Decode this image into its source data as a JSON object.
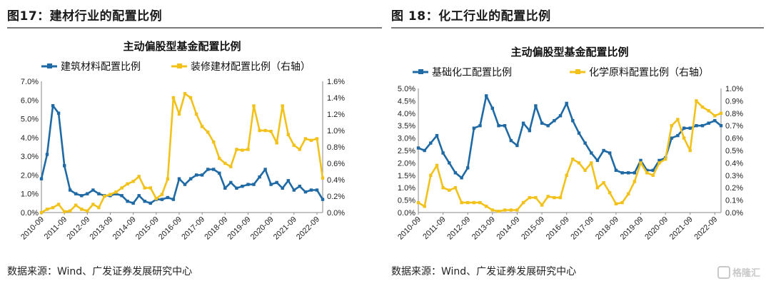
{
  "figures": [
    {
      "figure_title": "图17：建材行业的配置比例",
      "source_note": "数据来源：Wind、广发证券发展研究中心"
    },
    {
      "figure_title": "图 18：化工行业的配置比例",
      "source_note": "数据来源：Wind、广发证券发展研究中心"
    }
  ],
  "watermark": "格隆汇",
  "chart_data": [
    {
      "type": "line",
      "title": "主动偏股型基金配置比例",
      "x_ticks": [
        "2010-09",
        "2011-09",
        "2012-09",
        "2013-09",
        "2014-09",
        "2015-09",
        "2016-09",
        "2017-09",
        "2018-09",
        "2019-09",
        "2020-09",
        "2021-09",
        "2022-09"
      ],
      "x_range": [
        "2010-09",
        "2022-12"
      ],
      "left_axis": {
        "ticks": [
          "0.0%",
          "1.0%",
          "2.0%",
          "3.0%",
          "4.0%",
          "5.0%",
          "6.0%",
          "7.0%"
        ],
        "ylim": [
          0,
          7
        ]
      },
      "right_axis": {
        "ticks": [
          "0.0%",
          "0.2%",
          "0.4%",
          "0.6%",
          "0.8%",
          "1.0%",
          "1.2%",
          "1.4%",
          "1.6%"
        ],
        "ylim": [
          0,
          1.6
        ]
      },
      "legend_position": "top",
      "series": [
        {
          "name": "建筑材料配置比例",
          "axis": "left",
          "color": "#1f6aa5",
          "marker": "square",
          "x": [
            "2010-09",
            "2010-12",
            "2011-03",
            "2011-06",
            "2011-09",
            "2011-12",
            "2012-03",
            "2012-06",
            "2012-09",
            "2012-12",
            "2013-03",
            "2013-06",
            "2013-09",
            "2013-12",
            "2014-03",
            "2014-06",
            "2014-09",
            "2014-12",
            "2015-03",
            "2015-06",
            "2015-09",
            "2015-12",
            "2016-03",
            "2016-06",
            "2016-09",
            "2016-12",
            "2017-03",
            "2017-06",
            "2017-09",
            "2017-12",
            "2018-03",
            "2018-06",
            "2018-09",
            "2018-12",
            "2019-03",
            "2019-06",
            "2019-09",
            "2019-12",
            "2020-03",
            "2020-06",
            "2020-09",
            "2020-12",
            "2021-03",
            "2021-06",
            "2021-09",
            "2021-12",
            "2022-03",
            "2022-06",
            "2022-09",
            "2022-12"
          ],
          "y": [
            1.8,
            3.1,
            5.7,
            5.3,
            2.5,
            1.2,
            1.0,
            0.9,
            1.0,
            1.2,
            1.0,
            0.9,
            0.9,
            1.0,
            0.9,
            0.6,
            0.5,
            0.9,
            0.6,
            0.5,
            0.7,
            0.7,
            0.8,
            0.7,
            1.8,
            1.5,
            1.8,
            2.0,
            2.0,
            2.3,
            2.3,
            2.1,
            1.3,
            1.6,
            1.3,
            1.4,
            1.5,
            1.5,
            1.9,
            2.3,
            1.5,
            1.6,
            1.3,
            1.7,
            1.2,
            1.4,
            1.1,
            1.2,
            1.2,
            0.7
          ]
        },
        {
          "name": "装修建材配置比例（右轴）",
          "axis": "right",
          "color": "#f2c21b",
          "marker": "square",
          "x": [
            "2010-09",
            "2010-12",
            "2011-03",
            "2011-06",
            "2011-09",
            "2011-12",
            "2012-03",
            "2012-06",
            "2012-09",
            "2012-12",
            "2013-03",
            "2013-06",
            "2013-09",
            "2013-12",
            "2014-03",
            "2014-06",
            "2014-09",
            "2014-12",
            "2015-03",
            "2015-06",
            "2015-09",
            "2015-12",
            "2016-03",
            "2016-06",
            "2016-09",
            "2016-12",
            "2017-03",
            "2017-06",
            "2017-09",
            "2017-12",
            "2018-03",
            "2018-06",
            "2018-09",
            "2018-12",
            "2019-03",
            "2019-06",
            "2019-09",
            "2019-12",
            "2020-03",
            "2020-06",
            "2020-09",
            "2020-12",
            "2021-03",
            "2021-06",
            "2021-09",
            "2021-12",
            "2022-03",
            "2022-06",
            "2022-09",
            "2022-12"
          ],
          "y": [
            0.0,
            0.04,
            0.06,
            0.1,
            0.01,
            0.02,
            0.09,
            0.04,
            0.02,
            0.1,
            0.06,
            0.2,
            0.22,
            0.25,
            0.3,
            0.35,
            0.38,
            0.44,
            0.3,
            0.3,
            0.17,
            0.22,
            0.41,
            1.4,
            1.2,
            1.45,
            1.4,
            1.2,
            1.05,
            0.98,
            0.86,
            0.66,
            0.6,
            0.56,
            0.77,
            0.76,
            0.77,
            1.3,
            1.0,
            1.0,
            0.99,
            0.85,
            1.3,
            0.95,
            0.82,
            0.77,
            0.9,
            0.88,
            0.9,
            0.42
          ]
        }
      ]
    },
    {
      "type": "line",
      "title": "主动偏股型基金配置比例",
      "x_ticks": [
        "2010-09",
        "2011-09",
        "2012-09",
        "2013-09",
        "2014-09",
        "2015-09",
        "2016-09",
        "2017-09",
        "2018-09",
        "2019-09",
        "2020-09",
        "2021-09",
        "2022-09"
      ],
      "x_range": [
        "2010-09",
        "2022-12"
      ],
      "left_axis": {
        "ticks": [
          "0.0%",
          "0.5%",
          "1.0%",
          "1.5%",
          "2.0%",
          "2.5%",
          "3.0%",
          "3.5%",
          "4.0%",
          "4.5%",
          "5.0%"
        ],
        "ylim": [
          0,
          5
        ]
      },
      "right_axis": {
        "ticks": [
          "0.0%",
          "0.1%",
          "0.2%",
          "0.3%",
          "0.4%",
          "0.5%",
          "0.6%",
          "0.7%",
          "0.8%",
          "0.9%",
          "1.0%"
        ],
        "ylim": [
          0,
          1.0
        ]
      },
      "legend_position": "top",
      "series": [
        {
          "name": "基础化工配置比例",
          "axis": "left",
          "color": "#1f6aa5",
          "marker": "square",
          "x": [
            "2010-09",
            "2010-12",
            "2011-03",
            "2011-06",
            "2011-09",
            "2011-12",
            "2012-03",
            "2012-06",
            "2012-09",
            "2012-12",
            "2013-03",
            "2013-06",
            "2013-09",
            "2013-12",
            "2014-03",
            "2014-06",
            "2014-09",
            "2014-12",
            "2015-03",
            "2015-06",
            "2015-09",
            "2015-12",
            "2016-03",
            "2016-06",
            "2016-09",
            "2016-12",
            "2017-03",
            "2017-06",
            "2017-09",
            "2017-12",
            "2018-03",
            "2018-06",
            "2018-09",
            "2018-12",
            "2019-03",
            "2019-06",
            "2019-09",
            "2019-12",
            "2020-03",
            "2020-06",
            "2020-09",
            "2020-12",
            "2021-03",
            "2021-06",
            "2021-09",
            "2021-12",
            "2022-03",
            "2022-06",
            "2022-09",
            "2022-12"
          ],
          "y": [
            2.6,
            2.5,
            2.8,
            3.1,
            2.4,
            2.0,
            1.6,
            1.4,
            1.8,
            3.4,
            3.5,
            4.7,
            4.2,
            3.5,
            3.5,
            2.9,
            2.7,
            3.6,
            3.3,
            4.3,
            3.6,
            3.5,
            3.7,
            3.9,
            4.4,
            3.7,
            3.2,
            2.8,
            2.4,
            2.1,
            2.5,
            2.4,
            1.7,
            1.6,
            1.6,
            1.6,
            2.1,
            1.7,
            1.7,
            2.1,
            2.2,
            3.0,
            3.1,
            3.4,
            3.4,
            3.5,
            3.5,
            3.6,
            3.7,
            3.5
          ]
        },
        {
          "name": "化学原料配置比例（右轴）",
          "axis": "right",
          "color": "#f2c21b",
          "marker": "square",
          "x": [
            "2010-09",
            "2010-12",
            "2011-03",
            "2011-06",
            "2011-09",
            "2011-12",
            "2012-03",
            "2012-06",
            "2012-09",
            "2012-12",
            "2013-03",
            "2013-06",
            "2013-09",
            "2013-12",
            "2014-03",
            "2014-06",
            "2014-09",
            "2014-12",
            "2015-03",
            "2015-06",
            "2015-09",
            "2015-12",
            "2016-03",
            "2016-06",
            "2016-09",
            "2016-12",
            "2017-03",
            "2017-06",
            "2017-09",
            "2017-12",
            "2018-03",
            "2018-06",
            "2018-09",
            "2018-12",
            "2019-03",
            "2019-06",
            "2019-09",
            "2019-12",
            "2020-03",
            "2020-06",
            "2020-09",
            "2020-12",
            "2021-03",
            "2021-06",
            "2021-09",
            "2021-12",
            "2022-03",
            "2022-06",
            "2022-09",
            "2022-12"
          ],
          "y": [
            0.08,
            0.05,
            0.3,
            0.38,
            0.2,
            0.18,
            0.2,
            0.08,
            0.08,
            0.08,
            0.08,
            0.05,
            0.02,
            0.01,
            0.02,
            0.02,
            0.02,
            0.08,
            0.12,
            0.12,
            0.06,
            0.13,
            0.12,
            0.12,
            0.3,
            0.43,
            0.4,
            0.34,
            0.4,
            0.2,
            0.24,
            0.16,
            0.07,
            0.08,
            0.15,
            0.25,
            0.4,
            0.32,
            0.3,
            0.4,
            0.43,
            0.7,
            0.75,
            0.6,
            0.5,
            0.9,
            0.85,
            0.82,
            0.78,
            0.8
          ]
        }
      ]
    }
  ]
}
